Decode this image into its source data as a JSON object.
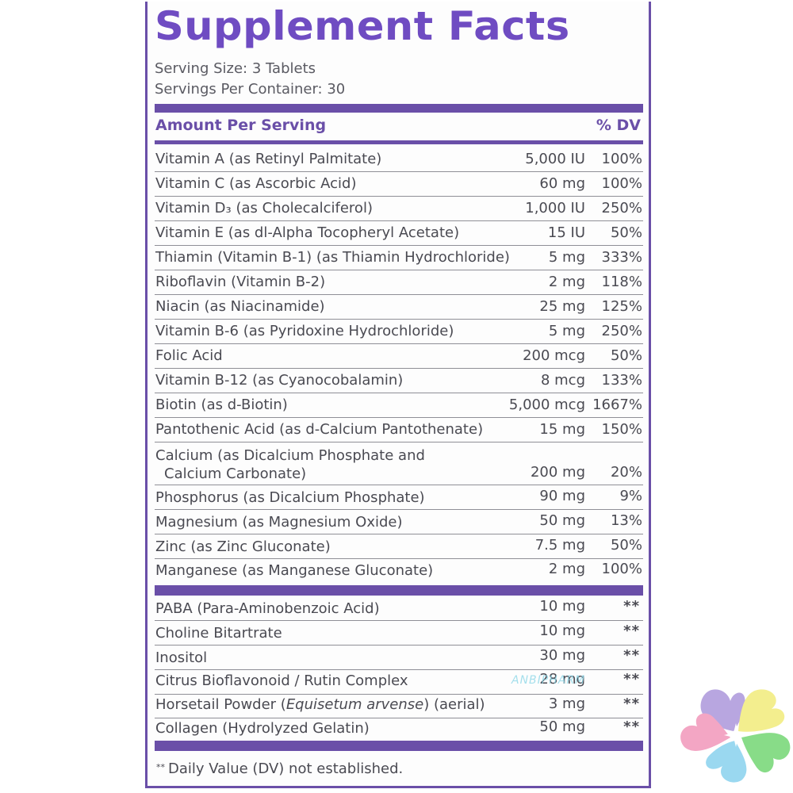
{
  "title": "Supplement Facts",
  "serving_size": "Serving Size: 3 Tablets",
  "servings_per_container": "Servings Per Container: 30",
  "header": {
    "amount_per_serving": "Amount Per Serving",
    "dv": "% DV"
  },
  "vitamins": [
    {
      "name": "Vitamin A (as Retinyl Palmitate)",
      "amount": "5,000 IU",
      "dv": "100%"
    },
    {
      "name": "Vitamin C (as Ascorbic Acid)",
      "amount": "60 mg",
      "dv": "100%"
    },
    {
      "name": "Vitamin D₃ (as Cholecalciferol)",
      "amount": "1,000 IU",
      "dv": "250%"
    },
    {
      "name": "Vitamin E (as dl-Alpha Tocopheryl Acetate)",
      "amount": "15 IU",
      "dv": "50%"
    },
    {
      "name": "Thiamin (Vitamin B-1) (as Thiamin Hydrochloride)",
      "amount": "5 mg",
      "dv": "333%"
    },
    {
      "name": "Riboflavin (Vitamin B-2)",
      "amount": "2 mg",
      "dv": "118%"
    },
    {
      "name": "Niacin (as Niacinamide)",
      "amount": "25 mg",
      "dv": "125%"
    },
    {
      "name": "Vitamin B-6 (as Pyridoxine Hydrochloride)",
      "amount": "5 mg",
      "dv": "250%"
    },
    {
      "name": "Folic Acid",
      "amount": "200 mcg",
      "dv": "50%"
    },
    {
      "name": "Vitamin B-12 (as Cyanocobalamin)",
      "amount": "8 mcg",
      "dv": "133%"
    },
    {
      "name": "Biotin (as d-Biotin)",
      "amount": "5,000 mcg",
      "dv": "1667%"
    },
    {
      "name": "Pantothenic Acid (as d-Calcium Pantothenate)",
      "amount": "15 mg",
      "dv": "150%"
    }
  ],
  "calcium": {
    "line1": "Calcium (as Dicalcium Phosphate and",
    "line2": "Calcium Carbonate)",
    "amount": "200 mg",
    "dv": "20%"
  },
  "minerals": [
    {
      "name": "Phosphorus (as Dicalcium Phosphate)",
      "amount": "90 mg",
      "dv": "9%"
    },
    {
      "name": "Magnesium (as Magnesium Oxide)",
      "amount": "50 mg",
      "dv": "13%"
    },
    {
      "name": "Zinc (as Zinc Gluconate)",
      "amount": "7.5 mg",
      "dv": "50%"
    },
    {
      "name": "Manganese (as Manganese Gluconate)",
      "amount": "2 mg",
      "dv": "100%"
    }
  ],
  "others": [
    {
      "name": "PABA (Para-Aminobenzoic Acid)",
      "amount": "10 mg",
      "dv": "**"
    },
    {
      "name": "Choline Bitartrate",
      "amount": "10 mg",
      "dv": "**"
    },
    {
      "name": "Inositol",
      "amount": "30 mg",
      "dv": "**"
    },
    {
      "name": "Citrus Bioflavonoid / Rutin Complex",
      "amount": "28 mg",
      "dv": "**"
    }
  ],
  "horsetail": {
    "prefix": "Horsetail Powder (",
    "latin": "Equisetum arvense",
    "suffix": ") (aerial)",
    "amount": "3 mg",
    "dv": "**"
  },
  "collagen": {
    "name": "Collagen (Hydrolyzed Gelatin)",
    "amount": "50 mg",
    "dv": "**"
  },
  "footnote": {
    "marker": "**",
    "text": "Daily Value (DV) not established."
  },
  "watermark": "ANBIPHARM",
  "colors": {
    "accent_purple": "#6a4fa8",
    "title_purple": "#6f4cc2",
    "logo_petals": [
      "#b8a6e0",
      "#f3ee8e",
      "#88dc88",
      "#9ad8f0",
      "#f3a6c4"
    ]
  }
}
